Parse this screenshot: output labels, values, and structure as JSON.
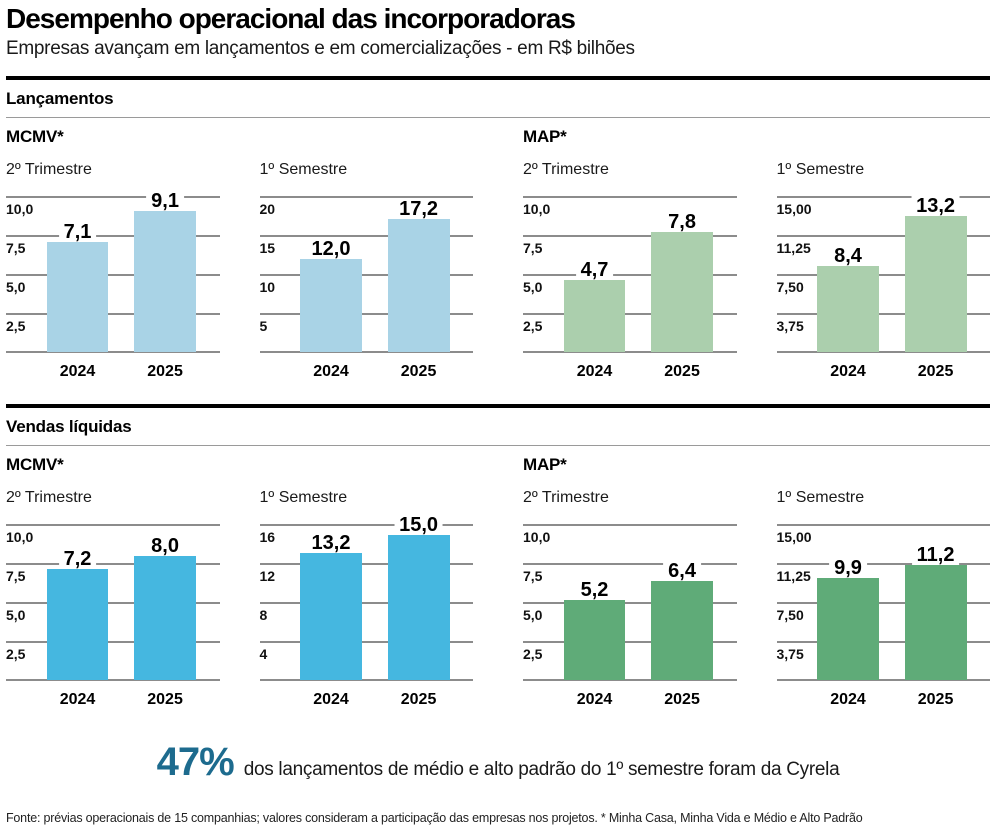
{
  "title": "Desempenho operacional das incorporadoras",
  "subtitle": "Empresas avançam em lançamentos e em comercializações - em R$ bilhões",
  "sections": [
    {
      "name": "Lançamentos",
      "groups": [
        "MCMV*",
        "MAP*"
      ]
    },
    {
      "name": "Vendas líquidas",
      "groups": [
        "MCMV*",
        "MAP*"
      ]
    }
  ],
  "colors": {
    "lancamentos_mcmv": "#a9d3e6",
    "lancamentos_map": "#abcfad",
    "vendas_mcmv": "#45b7e0",
    "vendas_map": "#5fab78",
    "stat_accent": "#1d6b8e",
    "gridline": "#8c8c8c"
  },
  "chart_data": [
    {
      "type": "bar",
      "section": "Lançamentos",
      "group": "MCMV*",
      "period": "2º Trimestre",
      "ticks": [
        "10,0",
        "7,5",
        "5,0",
        "2,5"
      ],
      "ymax": 10,
      "ylim": [
        0,
        10
      ],
      "grid": true,
      "categories": [
        "2024",
        "2025"
      ],
      "values": [
        7.1,
        9.1
      ],
      "value_labels": [
        "7,1",
        "9,1"
      ],
      "color": "#a9d3e6"
    },
    {
      "type": "bar",
      "section": "Lançamentos",
      "group": "MCMV*",
      "period": "1º Semestre",
      "ticks": [
        "20",
        "15",
        "10",
        "5"
      ],
      "ymax": 20,
      "ylim": [
        0,
        20
      ],
      "grid": true,
      "categories": [
        "2024",
        "2025"
      ],
      "values": [
        12.0,
        17.2
      ],
      "value_labels": [
        "12,0",
        "17,2"
      ],
      "color": "#a9d3e6"
    },
    {
      "type": "bar",
      "section": "Lançamentos",
      "group": "MAP*",
      "period": "2º Trimestre",
      "ticks": [
        "10,0",
        "7,5",
        "5,0",
        "2,5"
      ],
      "ymax": 10,
      "ylim": [
        0,
        10
      ],
      "grid": true,
      "categories": [
        "2024",
        "2025"
      ],
      "values": [
        4.7,
        7.8
      ],
      "value_labels": [
        "4,7",
        "7,8"
      ],
      "color": "#abcfad"
    },
    {
      "type": "bar",
      "section": "Lançamentos",
      "group": "MAP*",
      "period": "1º Semestre",
      "ticks": [
        "15,00",
        "11,25",
        "7,50",
        "3,75"
      ],
      "ymax": 15,
      "ylim": [
        0,
        15
      ],
      "grid": true,
      "categories": [
        "2024",
        "2025"
      ],
      "values": [
        8.4,
        13.2
      ],
      "value_labels": [
        "8,4",
        "13,2"
      ],
      "color": "#abcfad"
    },
    {
      "type": "bar",
      "section": "Vendas líquidas",
      "group": "MCMV*",
      "period": "2º Trimestre",
      "ticks": [
        "10,0",
        "7,5",
        "5,0",
        "2,5"
      ],
      "ymax": 10,
      "ylim": [
        0,
        10
      ],
      "grid": true,
      "categories": [
        "2024",
        "2025"
      ],
      "values": [
        7.2,
        8.0
      ],
      "value_labels": [
        "7,2",
        "8,0"
      ],
      "color": "#45b7e0"
    },
    {
      "type": "bar",
      "section": "Vendas líquidas",
      "group": "MCMV*",
      "period": "1º Semestre",
      "ticks": [
        "16",
        "12",
        "8",
        "4"
      ],
      "ymax": 16,
      "ylim": [
        0,
        16
      ],
      "grid": true,
      "categories": [
        "2024",
        "2025"
      ],
      "values": [
        13.2,
        15.0
      ],
      "value_labels": [
        "13,2",
        "15,0"
      ],
      "color": "#45b7e0"
    },
    {
      "type": "bar",
      "section": "Vendas líquidas",
      "group": "MAP*",
      "period": "2º Trimestre",
      "ticks": [
        "10,0",
        "7,5",
        "5,0",
        "2,5"
      ],
      "ymax": 10,
      "ylim": [
        0,
        10
      ],
      "grid": true,
      "categories": [
        "2024",
        "2025"
      ],
      "values": [
        5.2,
        6.4
      ],
      "value_labels": [
        "5,2",
        "6,4"
      ],
      "color": "#5fab78"
    },
    {
      "type": "bar",
      "section": "Vendas líquidas",
      "group": "MAP*",
      "period": "1º Semestre",
      "ticks": [
        "15,00",
        "11,25",
        "7,50",
        "3,75"
      ],
      "ymax": 15,
      "ylim": [
        0,
        15
      ],
      "grid": true,
      "categories": [
        "2024",
        "2025"
      ],
      "values": [
        9.9,
        11.2
      ],
      "value_labels": [
        "9,9",
        "11,2"
      ],
      "color": "#5fab78"
    }
  ],
  "highlight": {
    "stat": "47%",
    "text": "dos lançamentos de médio e alto padrão do 1º semestre foram da Cyrela"
  },
  "footnote": "Fonte: prévias operacionais de 15 companhias; valores consideram a participação das empresas nos projetos. * Minha Casa, Minha Vida e Médio e Alto Padrão"
}
